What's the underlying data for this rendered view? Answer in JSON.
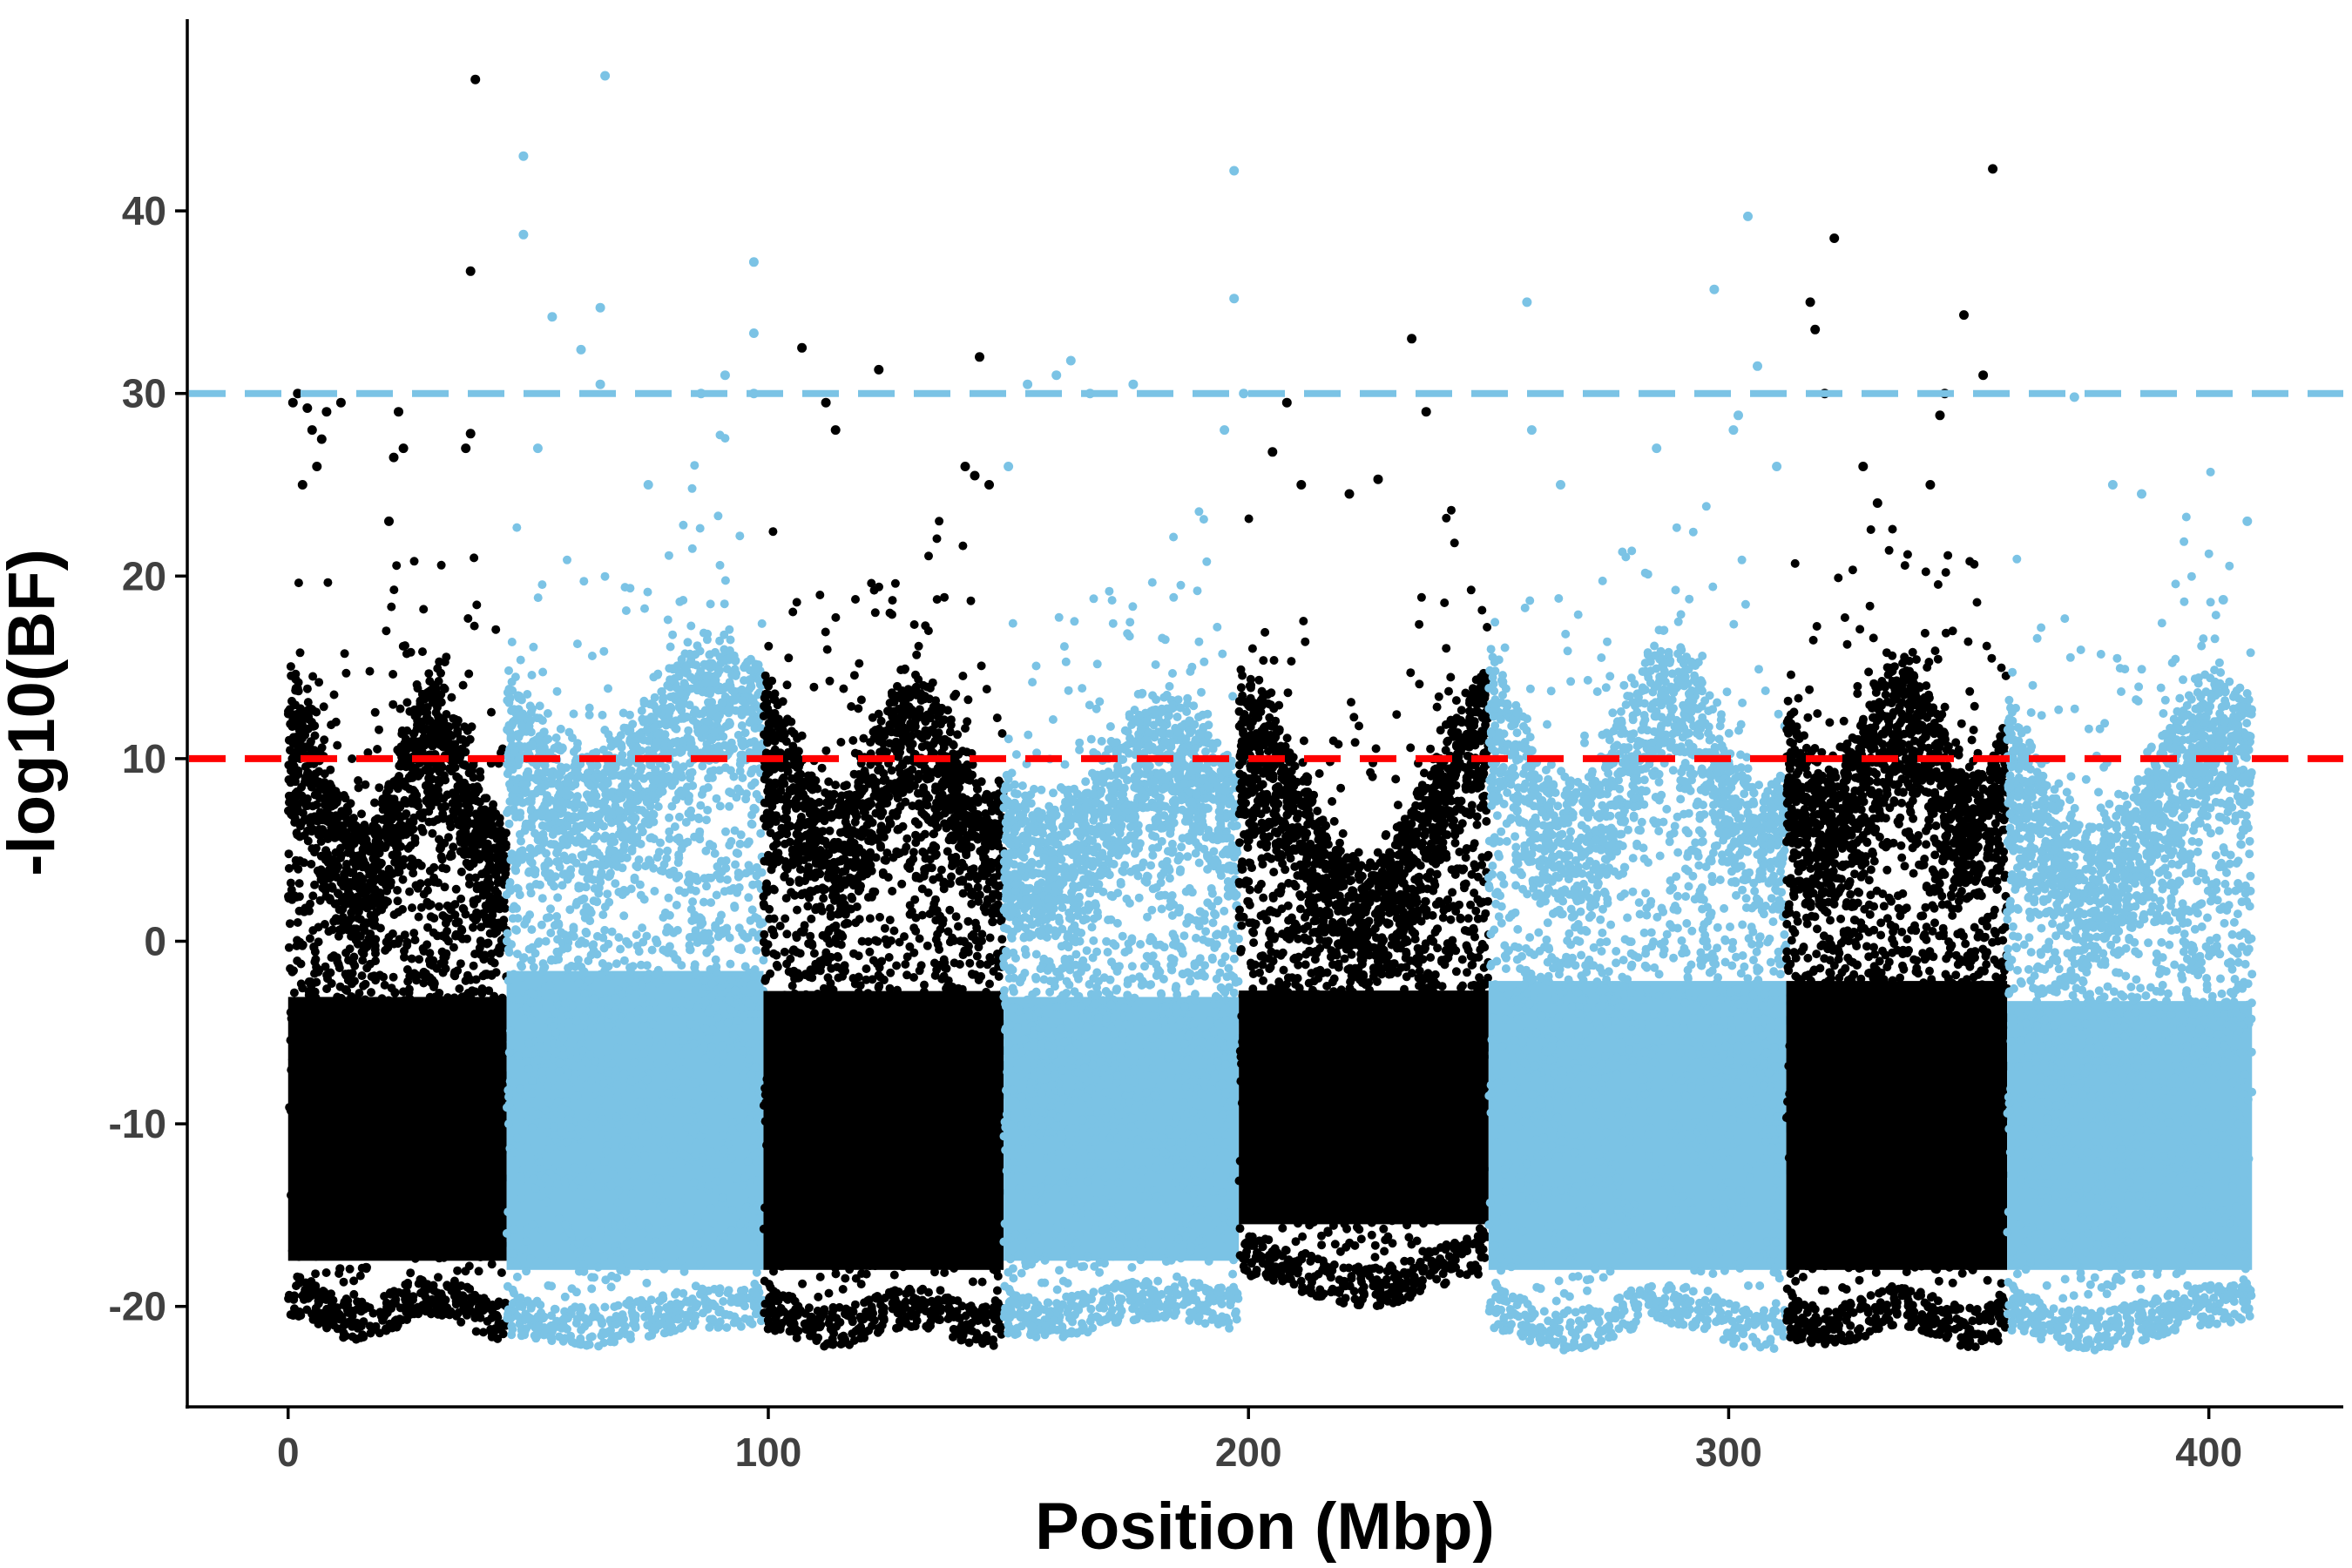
{
  "chart_data": {
    "type": "scatter",
    "title": "",
    "xlabel": "Position (Mbp)",
    "ylabel": "-log10(BF)",
    "xlim": [
      -21,
      428
    ],
    "ylim": [
      -25.5,
      50.5
    ],
    "x_ticks": [
      0,
      100,
      200,
      300,
      400
    ],
    "y_ticks": [
      -20,
      -10,
      0,
      10,
      20,
      30,
      40
    ],
    "x_tick_labels": [
      "0",
      "100",
      "200",
      "300",
      "400"
    ],
    "y_tick_labels": [
      "-20",
      "-10",
      "0",
      "10",
      "20",
      "30",
      "40"
    ],
    "grid": false,
    "legend": "none",
    "colors": {
      "dark": "#000000",
      "light": "#7BC3E5"
    },
    "thresholds": [
      {
        "y": 30,
        "color": "#7BC3E5",
        "style": "dashed"
      },
      {
        "y": 10,
        "color": "#FF0000",
        "style": "dashed"
      }
    ],
    "segments": [
      {
        "start": 0,
        "end": 45.5,
        "color": "dark",
        "lower": -19,
        "upper": 10,
        "wave_amp": 4,
        "wave_freq": 1.5,
        "wave_phase": 0.0
      },
      {
        "start": 45.5,
        "end": 99,
        "color": "light",
        "lower": -19.5,
        "upper": 13,
        "wave_amp": 3,
        "wave_freq": 1.0,
        "wave_phase": 1.2
      },
      {
        "start": 99,
        "end": 149,
        "color": "dark",
        "lower": -19.5,
        "upper": 11,
        "wave_amp": 3,
        "wave_freq": 1.5,
        "wave_phase": 0.4
      },
      {
        "start": 149,
        "end": 198,
        "color": "light",
        "lower": -19,
        "upper": 10,
        "wave_amp": 3,
        "wave_freq": 1.0,
        "wave_phase": 2.0
      },
      {
        "start": 198,
        "end": 250,
        "color": "dark",
        "lower": -17,
        "upper": 9,
        "wave_amp": 5,
        "wave_freq": 1.0,
        "wave_phase": 0.0
      },
      {
        "start": 250,
        "end": 312,
        "color": "light",
        "lower": -19.5,
        "upper": 12,
        "wave_amp": 4,
        "wave_freq": 1.5,
        "wave_phase": 0.6
      },
      {
        "start": 312,
        "end": 358,
        "color": "dark",
        "lower": -19.5,
        "upper": 12,
        "wave_amp": 3,
        "wave_freq": 1.5,
        "wave_phase": 1.4
      },
      {
        "start": 358,
        "end": 409,
        "color": "light",
        "lower": -19.5,
        "upper": 10,
        "wave_amp": 4,
        "wave_freq": 1.0,
        "wave_phase": 0.9
      }
    ],
    "series": [
      {
        "color": "dark",
        "points": [
          [
            2,
            30.0
          ],
          [
            1,
            29.5
          ],
          [
            4,
            29.2
          ],
          [
            8,
            29.0
          ],
          [
            11,
            29.5
          ],
          [
            5,
            28.0
          ],
          [
            7,
            27.5
          ],
          [
            23,
            29.0
          ],
          [
            24,
            27.0
          ],
          [
            22,
            26.5
          ],
          [
            38,
            27.8
          ],
          [
            37,
            27.0
          ],
          [
            38,
            36.7
          ],
          [
            39,
            47.2
          ],
          [
            21,
            23.0
          ],
          [
            3,
            25.0
          ],
          [
            6,
            26.0
          ],
          [
            107,
            32.5
          ],
          [
            112,
            29.5
          ],
          [
            114,
            28.0
          ],
          [
            123,
            31.3
          ],
          [
            144,
            32.0
          ],
          [
            143,
            25.5
          ],
          [
            146,
            25.0
          ],
          [
            141,
            26.0
          ],
          [
            205,
            26.8
          ],
          [
            208,
            29.5
          ],
          [
            211,
            25.0
          ],
          [
            221,
            24.5
          ],
          [
            227,
            25.3
          ],
          [
            234,
            33.0
          ],
          [
            237,
            29.0
          ],
          [
            317,
            35.0
          ],
          [
            318,
            33.5
          ],
          [
            322,
            38.5
          ],
          [
            320,
            30.0
          ],
          [
            328,
            26.0
          ],
          [
            344,
            28.8
          ],
          [
            345,
            30.0
          ],
          [
            349,
            34.3
          ],
          [
            353,
            31.0
          ],
          [
            355,
            42.3
          ],
          [
            342,
            25.0
          ],
          [
            331,
            24.0
          ]
        ]
      },
      {
        "color": "light",
        "points": [
          [
            49,
            43.0
          ],
          [
            49,
            38.7
          ],
          [
            55,
            34.2
          ],
          [
            61,
            32.4
          ],
          [
            65,
            34.7
          ],
          [
            66,
            47.4
          ],
          [
            65,
            30.5
          ],
          [
            97,
            37.2
          ],
          [
            97,
            33.3
          ],
          [
            97,
            30.0
          ],
          [
            75,
            25.0
          ],
          [
            86,
            30.0
          ],
          [
            91,
            31.0
          ],
          [
            154,
            30.5
          ],
          [
            160,
            31.0
          ],
          [
            163,
            31.8
          ],
          [
            167,
            30.0
          ],
          [
            197,
            42.2
          ],
          [
            197,
            35.2
          ],
          [
            195,
            28.0
          ],
          [
            199,
            30.0
          ],
          [
            258,
            35.0
          ],
          [
            259,
            28.0
          ],
          [
            265,
            25.0
          ],
          [
            297,
            35.7
          ],
          [
            304,
            39.7
          ],
          [
            306,
            31.5
          ],
          [
            302,
            28.8
          ],
          [
            301,
            28.0
          ],
          [
            372,
            29.8
          ],
          [
            380,
            25.0
          ],
          [
            386,
            24.5
          ],
          [
            403,
            18.7
          ],
          [
            408,
            23.0
          ],
          [
            52,
            27.0
          ],
          [
            150,
            26.0
          ],
          [
            176,
            30.5
          ],
          [
            285,
            27.0
          ],
          [
            310,
            26.0
          ]
        ]
      }
    ],
    "summary_points": {
      "description": "Dense background points rendered procedurally from segment envelopes",
      "per_segment": 2600
    }
  }
}
